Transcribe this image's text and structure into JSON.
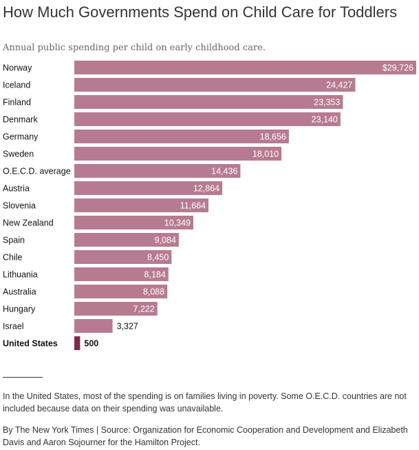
{
  "title": "How Much Governments Spend on Child Care for Toddlers",
  "subtitle": "Annual public spending per child on early childhood care.",
  "note": "In the United States, most of the spending is on families living in poverty. Some O.E.C.D. countries are not included because data on their spending was unavailable.",
  "credit": "By The New York Times | Source: Organization for Economic Cooperation and Development and Elizabeth Davis and Aaron Sojourner for the Hamilton Project.",
  "colors": {
    "bar": "#b77b91",
    "highlight": "#7d2a4c",
    "label_inside": "#ffffff",
    "label_outside": "#121212"
  },
  "chart_data": {
    "type": "bar",
    "orientation": "horizontal",
    "categories": [
      "Norway",
      "Iceland",
      "Finland",
      "Denmark",
      "Germany",
      "Sweden",
      "O.E.C.D. average",
      "Austria",
      "Slovenia",
      "New Zealand",
      "Spain",
      "Chile",
      "Lithuania",
      "Australia",
      "Hungary",
      "Israel",
      "United States"
    ],
    "values": [
      29726,
      24427,
      23353,
      23140,
      18656,
      18010,
      14436,
      12864,
      11664,
      10349,
      9084,
      8450,
      8184,
      8088,
      7222,
      3327,
      500
    ],
    "value_labels": [
      "$29,726",
      "24,427",
      "23,353",
      "23,140",
      "18,656",
      "18,010",
      "14,436",
      "12,864",
      "11,664",
      "10,349",
      "9,084",
      "8,450",
      "8,184",
      "8,088",
      "7,222",
      "3,327",
      "500"
    ],
    "highlight": "United States",
    "xlim": [
      0,
      29726
    ],
    "xlabel": "",
    "ylabel": "",
    "grid": false
  }
}
